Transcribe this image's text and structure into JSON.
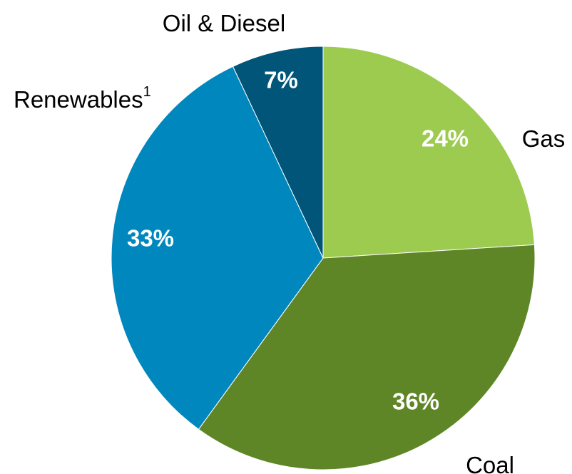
{
  "chart_data": {
    "type": "pie",
    "start": "12 o'clock",
    "direction": "clockwise",
    "slices": [
      {
        "label": "Gas",
        "superscript": "",
        "value": 24,
        "value_label": "24%",
        "color": "#9ccb50"
      },
      {
        "label": "Coal",
        "superscript": "",
        "value": 36,
        "value_label": "36%",
        "color": "#5e8526"
      },
      {
        "label": "Renewables",
        "superscript": "1",
        "value": 33,
        "value_label": "33%",
        "color": "#0087bd"
      },
      {
        "label": "Oil & Diesel",
        "superscript": "",
        "value": 7,
        "value_label": "7%",
        "color": "#005579"
      }
    ]
  }
}
